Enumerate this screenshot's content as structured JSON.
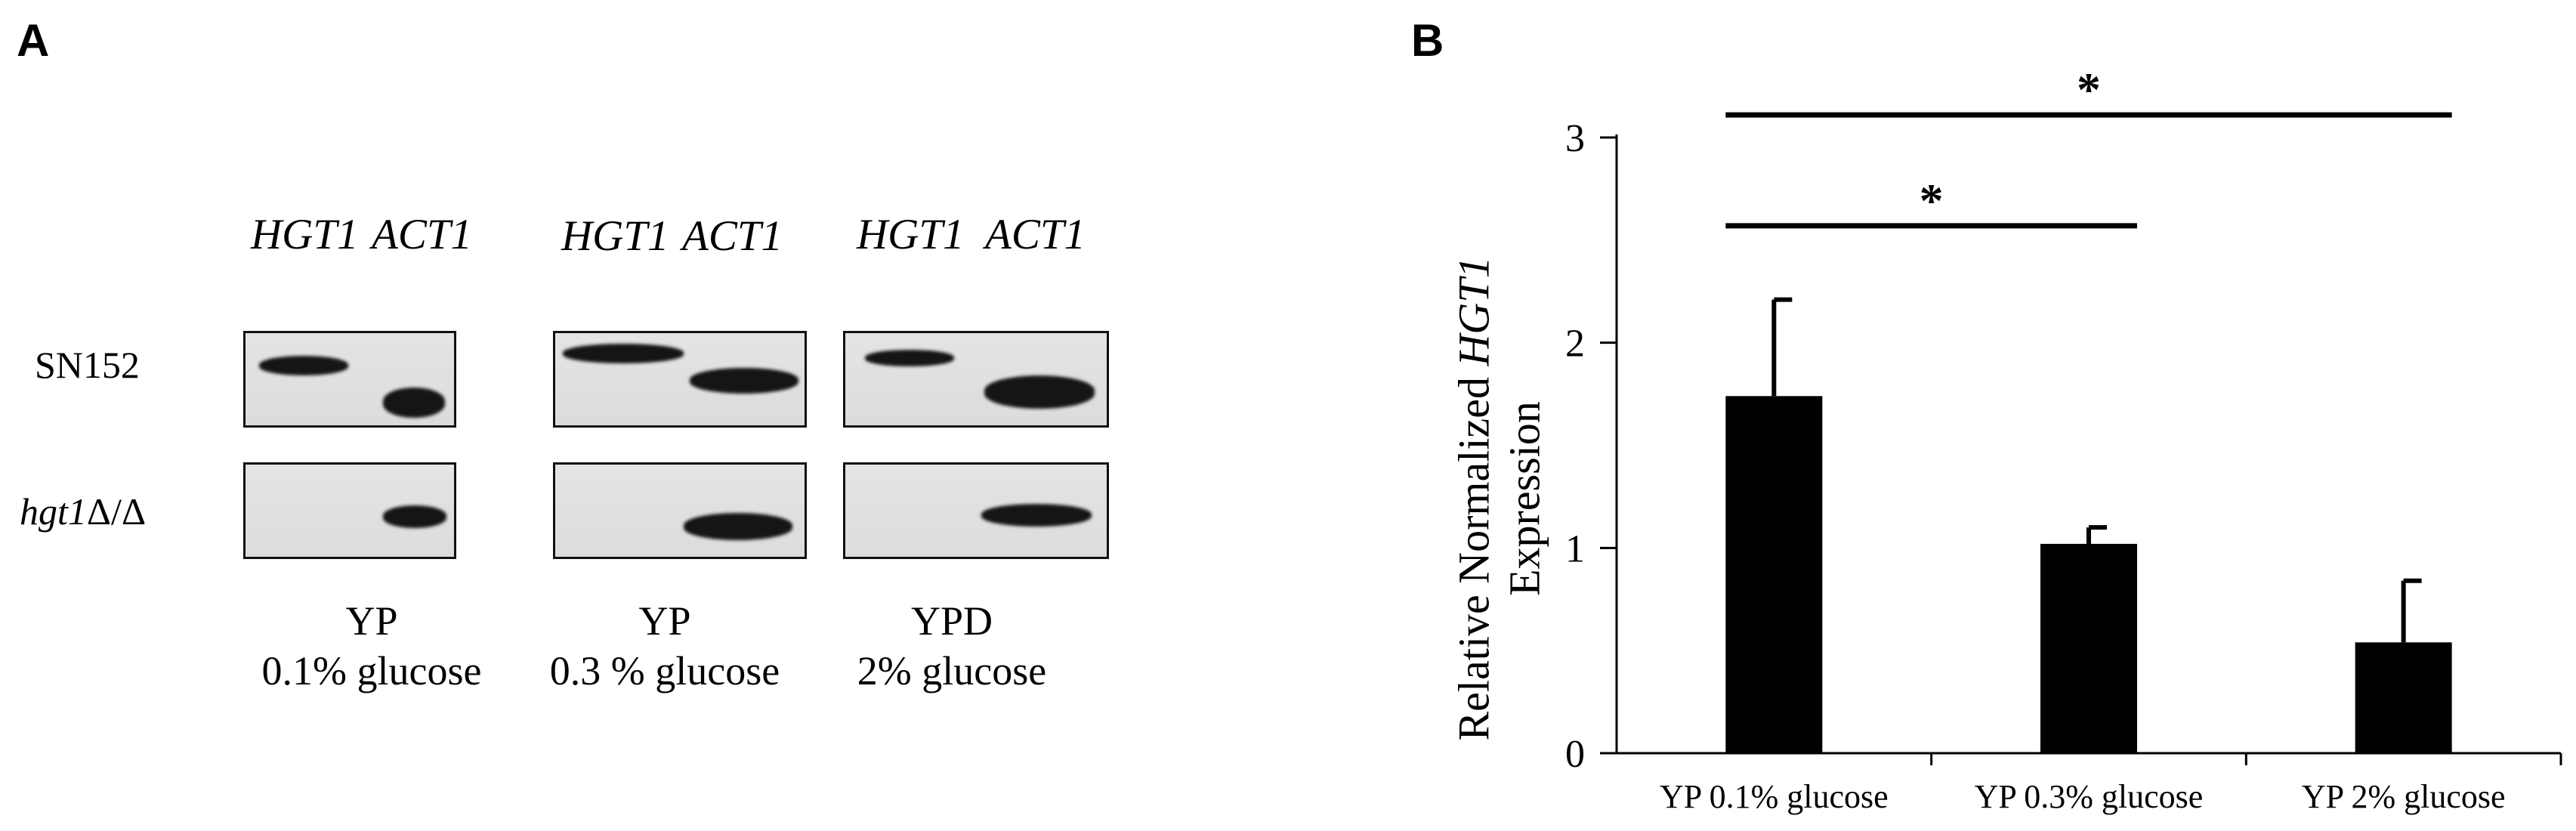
{
  "panel_a": {
    "label": "A",
    "lane_labels": [
      "HGT1",
      "ACT1"
    ],
    "rows": [
      "SN152",
      "hgt1Δ/Δ"
    ],
    "row_strain_parts": {
      "italic": "hgt1",
      "rest": "Δ/Δ"
    },
    "groups": [
      {
        "condition_line1": "YP",
        "condition_line2": "0.1% glucose",
        "bands": {
          "SN152": [
            true,
            true
          ],
          "hgt1Δ/Δ": [
            false,
            true
          ]
        }
      },
      {
        "condition_line1": "YP",
        "condition_line2": "0.3 % glucose",
        "bands": {
          "SN152": [
            true,
            true
          ],
          "hgt1Δ/Δ": [
            false,
            true
          ]
        }
      },
      {
        "condition_line1": "YPD",
        "condition_line2": "2% glucose",
        "bands": {
          "SN152": [
            true,
            true
          ],
          "hgt1Δ/Δ": [
            false,
            true
          ]
        }
      }
    ]
  },
  "panel_b": {
    "label": "B",
    "chart_data": {
      "type": "bar",
      "categories": [
        "YP 0.1% glucose",
        "YP 0.3% glucose",
        "YP 2% glucose"
      ],
      "values": [
        1.74,
        1.02,
        0.54
      ],
      "error_upper": [
        0.47,
        0.08,
        0.3
      ],
      "ylabel_prefix": "Relative Normalized ",
      "ylabel_gene": "HGT1",
      "ylabel_line2": "Expression",
      "ylim": [
        0,
        3
      ],
      "yticks": [
        0,
        1,
        2,
        3
      ],
      "bar_color": "#000000",
      "significance": [
        {
          "from": "YP 0.1% glucose",
          "to": "YP 0.3% glucose",
          "label": "*"
        },
        {
          "from": "YP 0.1% glucose",
          "to": "YP 2% glucose",
          "label": "*"
        }
      ]
    }
  }
}
